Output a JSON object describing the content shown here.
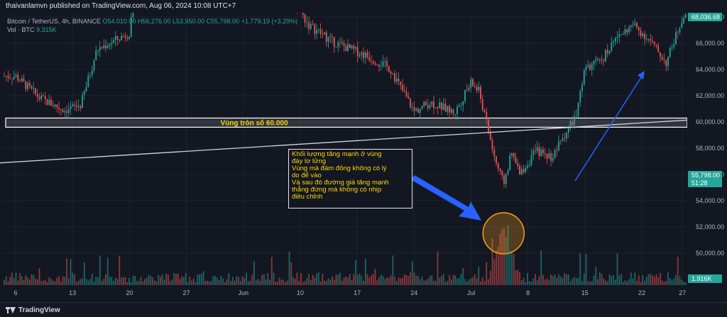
{
  "banner": {
    "text": "thaivanlamvn published on TradingView.com, Aug 06, 2024 10:08 UTC+7"
  },
  "legend": {
    "symbol": "Bitcoin / TetherUS, 4h, BINANCE",
    "ohlc": "O54,010.00 H56,276.00 L53,950.00 C55,798.00 +1,779.19 (+3.29%)",
    "volume_label": "Vol · BTC",
    "volume_value": "9.315K"
  },
  "zone_label": "Vùng tròn số 60.000",
  "annotation": {
    "lines": [
      "Khối lượng tăng mạnh ở vùng",
      "đáy lơ lửng",
      "Vùng mà đám đông không có lý",
      "do để vào",
      "Và sau đó đường giá tăng mạnh",
      "thẳng đứng mà không có nhịp",
      "điều chỉnh"
    ]
  },
  "footer": {
    "brand": "TradingView"
  },
  "colors": {
    "background": "#131722",
    "up": "#26a69a",
    "down": "#ef5350",
    "zone": "#ffffff",
    "arrow_big": "#2962ff",
    "arrow_thin": "#2962ff",
    "circle": "#f7a21b",
    "text_yellow": "#ffd600"
  },
  "chart_data": {
    "type": "candlestick",
    "title": "Bitcoin / TetherUS, 4h, BINANCE",
    "price_axis": {
      "ticks": [
        "68,000.00",
        "66,000.00",
        "64,000.00",
        "62,000.00",
        "60,000.00",
        "58,000.00",
        "56,000.00",
        "54,000.00",
        "52,000.00",
        "50,000.00"
      ],
      "tick_values": [
        68000,
        66000,
        64000,
        62000,
        60000,
        58000,
        56000,
        54000,
        52000,
        50000
      ],
      "range": [
        48800,
        69000
      ],
      "last_price_label": "68,036.68",
      "current_price_label": "55,798.00",
      "countdown_label": "51:28",
      "volume_label": "1.916K"
    },
    "time_axis": {
      "labels": [
        "6",
        "13",
        "20",
        "27",
        "Jun",
        "10",
        "17",
        "24",
        "Jul",
        "8",
        "15",
        "22",
        "27"
      ],
      "dates": [
        "2024-05-06",
        "2024-05-13",
        "2024-05-20",
        "2024-05-27",
        "2024-06-03",
        "2024-06-10",
        "2024-06-17",
        "2024-06-24",
        "2024-07-01",
        "2024-07-08",
        "2024-07-15",
        "2024-07-22",
        "2024-07-27"
      ]
    },
    "price_path": [
      {
        "date": "2024-05-06",
        "close": 63500
      },
      {
        "date": "2024-05-09",
        "close": 61800
      },
      {
        "date": "2024-05-12",
        "close": 60900
      },
      {
        "date": "2024-05-14",
        "close": 61300
      },
      {
        "date": "2024-05-16",
        "close": 65500
      },
      {
        "date": "2024-05-20",
        "close": 66800
      },
      {
        "date": "2024-05-21",
        "close": 71000
      },
      {
        "date": "2024-05-27",
        "close": 69400
      },
      {
        "date": "2024-06-07",
        "close": 71500
      },
      {
        "date": "2024-06-11",
        "close": 67400
      },
      {
        "date": "2024-06-14",
        "close": 66100
      },
      {
        "date": "2024-06-18",
        "close": 65100
      },
      {
        "date": "2024-06-21",
        "close": 64100
      },
      {
        "date": "2024-06-24",
        "close": 60800
      },
      {
        "date": "2024-06-26",
        "close": 61500
      },
      {
        "date": "2024-06-29",
        "close": 60700
      },
      {
        "date": "2024-07-01",
        "close": 63000
      },
      {
        "date": "2024-07-02",
        "close": 62300
      },
      {
        "date": "2024-07-04",
        "close": 57000
      },
      {
        "date": "2024-07-05",
        "close": 55300
      },
      {
        "date": "2024-07-06",
        "close": 57600
      },
      {
        "date": "2024-07-07",
        "close": 56000
      },
      {
        "date": "2024-07-09",
        "close": 57800
      },
      {
        "date": "2024-07-11",
        "close": 57300
      },
      {
        "date": "2024-07-12",
        "close": 58500
      },
      {
        "date": "2024-07-14",
        "close": 60600
      },
      {
        "date": "2024-07-15",
        "close": 64000
      },
      {
        "date": "2024-07-17",
        "close": 64700
      },
      {
        "date": "2024-07-19",
        "close": 66500
      },
      {
        "date": "2024-07-21",
        "close": 67400
      },
      {
        "date": "2024-07-23",
        "close": 66200
      },
      {
        "date": "2024-07-25",
        "close": 64500
      },
      {
        "date": "2024-07-27",
        "close": 68000
      }
    ],
    "zone": {
      "low": 59600,
      "high": 60300,
      "label": "Vùng tròn số 60.000"
    },
    "trendline": {
      "start": {
        "date": "2024-05-02",
        "price": 56800
      },
      "end": {
        "date": "2024-07-29",
        "price": 60200
      }
    },
    "volume_highlight": {
      "date": "2024-07-05"
    },
    "grid": true
  }
}
